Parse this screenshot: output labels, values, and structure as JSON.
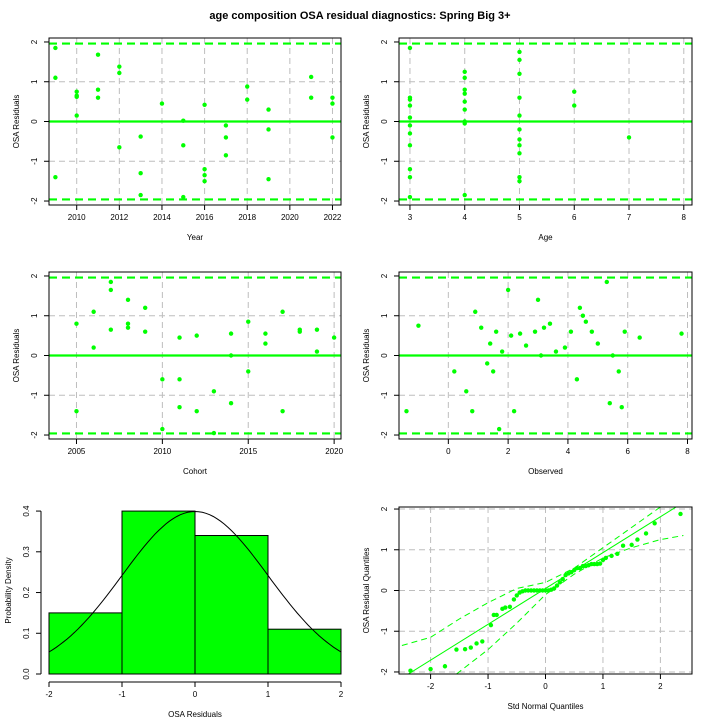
{
  "title": "age composition OSA residual diagnostics: Spring Big 3+",
  "colors": {
    "points": "#00ff00",
    "lines": "#00ff00",
    "grid": "#bebebe",
    "hist_fill": "#00ff00",
    "density": "#000000",
    "frame": "#000000"
  },
  "chart_data": [
    {
      "type": "scatter",
      "xlabel": "Year",
      "ylabel": "OSA Residuals",
      "xlim": [
        2008.7,
        2022.4
      ],
      "ylim": [
        -2.1,
        2.1
      ],
      "xticks": [
        2010,
        2012,
        2014,
        2016,
        2018,
        2020,
        2022
      ],
      "yticks": [
        -2,
        -1,
        0,
        1,
        2
      ],
      "vgrid": [
        2010,
        2012,
        2014,
        2016,
        2018,
        2020,
        2022
      ],
      "hlines": [
        0
      ],
      "hlines_dashed": [
        -1.96,
        1.96
      ],
      "grid": true,
      "x": [
        2009,
        2009,
        2009,
        2010,
        2010,
        2010,
        2010,
        2011,
        2011,
        2011,
        2012,
        2012,
        2012,
        2013,
        2013,
        2013,
        2014,
        2015,
        2015,
        2015,
        2016,
        2016,
        2016,
        2016,
        2017,
        2017,
        2017,
        2018,
        2018,
        2019,
        2019,
        2019,
        2021,
        2021,
        2022,
        2022,
        2022
      ],
      "y": [
        1.85,
        1.1,
        -1.4,
        0.75,
        0.65,
        0.62,
        0.15,
        1.68,
        0.8,
        0.6,
        1.38,
        1.22,
        -0.65,
        -1.3,
        -1.85,
        -0.38,
        0.45,
        0.02,
        -0.6,
        -1.9,
        0.42,
        -1.2,
        -1.35,
        -1.5,
        -0.1,
        -0.4,
        -0.85,
        0.88,
        0.55,
        0.3,
        -0.2,
        -1.45,
        1.12,
        0.6,
        0.6,
        0.45,
        -0.4
      ]
    },
    {
      "type": "scatter",
      "xlabel": "Age",
      "ylabel": "OSA Residuals",
      "xlim": [
        2.8,
        8.15
      ],
      "ylim": [
        -2.1,
        2.1
      ],
      "xticks": [
        3,
        4,
        5,
        6,
        7,
        8
      ],
      "yticks": [
        -2,
        -1,
        0,
        1,
        2
      ],
      "vgrid": [
        3,
        4,
        5,
        6,
        7,
        8
      ],
      "hlines": [
        0
      ],
      "hlines_dashed": [
        -1.96,
        1.96
      ],
      "grid": true,
      "x": [
        3,
        3,
        3,
        3,
        3,
        3,
        3,
        3,
        3,
        3,
        3,
        4,
        4,
        4,
        4,
        4,
        4,
        4,
        4,
        4,
        5,
        5,
        5,
        5,
        5,
        5,
        5,
        5,
        5,
        5,
        5,
        6,
        6,
        7
      ],
      "y": [
        1.85,
        0.6,
        0.55,
        0.4,
        0.1,
        -0.1,
        -0.3,
        -0.6,
        -1.2,
        -1.4,
        -1.9,
        1.25,
        1.1,
        0.8,
        0.7,
        0.5,
        0.3,
        0.0,
        -0.05,
        -1.85,
        1.75,
        1.55,
        1.2,
        0.6,
        0.15,
        -0.2,
        -0.45,
        -0.6,
        -0.8,
        -1.4,
        -1.5,
        0.75,
        0.4,
        -0.4
      ]
    },
    {
      "type": "scatter",
      "xlabel": "Cohort",
      "ylabel": "OSA Residuals",
      "xlim": [
        2003.4,
        2020.4
      ],
      "ylim": [
        -2.1,
        2.1
      ],
      "xticks": [
        2005,
        2010,
        2015,
        2020
      ],
      "yticks": [
        -2,
        -1,
        0,
        1,
        2
      ],
      "vgrid": [
        2005,
        2010,
        2015,
        2020
      ],
      "hlines": [
        0
      ],
      "hlines_dashed": [
        -1.96,
        1.96
      ],
      "grid": true,
      "x": [
        2005,
        2005,
        2006,
        2006,
        2007,
        2007,
        2007,
        2008,
        2008,
        2008,
        2009,
        2009,
        2010,
        2010,
        2011,
        2011,
        2011,
        2012,
        2012,
        2013,
        2013,
        2014,
        2014,
        2014,
        2015,
        2015,
        2016,
        2016,
        2017,
        2017,
        2018,
        2018,
        2019,
        2019,
        2020
      ],
      "y": [
        0.8,
        -1.4,
        1.1,
        0.2,
        1.85,
        1.65,
        0.65,
        1.4,
        0.8,
        0.7,
        1.2,
        0.6,
        -0.6,
        -1.85,
        0.45,
        -0.6,
        -1.3,
        0.5,
        -1.4,
        -0.9,
        -1.95,
        0.55,
        0.0,
        -1.2,
        0.85,
        -0.4,
        0.55,
        0.3,
        1.1,
        -1.4,
        0.6,
        0.65,
        0.65,
        0.1,
        0.45
      ]
    },
    {
      "type": "scatter",
      "xlabel": "Observed",
      "ylabel": "OSA Residuals",
      "xlim": [
        -1.65,
        8.15
      ],
      "ylim": [
        -2.1,
        2.1
      ],
      "xticks": [
        0,
        2,
        4,
        6,
        8
      ],
      "yticks": [
        -2,
        -1,
        0,
        1,
        2
      ],
      "vgrid": [
        0,
        2,
        4,
        6,
        8
      ],
      "hlines": [
        0
      ],
      "hlines_dashed": [
        -1.96,
        1.96
      ],
      "grid": true,
      "x": [
        -1.4,
        -1.0,
        0.2,
        0.6,
        0.8,
        0.9,
        1.1,
        1.3,
        1.4,
        1.5,
        1.6,
        1.7,
        1.8,
        2.0,
        2.1,
        2.2,
        2.4,
        2.6,
        2.9,
        3.0,
        3.1,
        3.2,
        3.4,
        3.6,
        3.9,
        4.1,
        4.3,
        4.4,
        4.5,
        4.6,
        4.8,
        5.0,
        5.3,
        5.4,
        5.5,
        5.7,
        5.8,
        5.9,
        6.4,
        7.8
      ],
      "y": [
        -1.4,
        0.75,
        -0.4,
        -0.9,
        -1.4,
        1.1,
        0.7,
        -0.2,
        0.3,
        -0.4,
        0.6,
        -1.85,
        0.1,
        1.65,
        0.5,
        -1.4,
        0.55,
        0.25,
        0.6,
        1.4,
        0.0,
        0.7,
        0.8,
        0.1,
        0.2,
        0.6,
        -0.6,
        1.2,
        1.0,
        0.85,
        0.6,
        0.3,
        1.85,
        -1.2,
        0.0,
        -0.4,
        -1.3,
        0.6,
        0.45,
        0.55
      ]
    },
    {
      "type": "histogram",
      "xlabel": "OSA Residuals",
      "ylabel": "Probability Density",
      "xlim": [
        -2,
        2
      ],
      "ylim": [
        0,
        0.41
      ],
      "xticks": [
        -2,
        -1,
        0,
        1,
        2
      ],
      "yticks": [
        0.0,
        0.1,
        0.2,
        0.3,
        0.4
      ],
      "grid": false,
      "bins": [
        [
          -2,
          -1
        ],
        [
          -1,
          0
        ],
        [
          0,
          1
        ],
        [
          1,
          2
        ]
      ],
      "values": [
        0.15,
        0.4,
        0.34,
        0.11
      ],
      "density_curve": "standard normal"
    },
    {
      "type": "qq",
      "xlabel": "Std Normal Quantiles",
      "ylabel": "OSA Residual Quantiles",
      "xlim": [
        -2.55,
        2.55
      ],
      "ylim": [
        -2.05,
        2.05
      ],
      "xticks": [
        -2,
        -1,
        0,
        1,
        2
      ],
      "yticks": [
        -2,
        -1,
        0,
        1,
        2
      ],
      "vgrid": [
        -2,
        -1,
        0,
        1,
        2
      ],
      "hgrid": [
        -2,
        -1,
        0,
        1,
        2
      ],
      "grid": true,
      "reference_line": {
        "slope": 0.88,
        "intercept": 0.05
      },
      "band": {
        "upper": [
          [
            -2.5,
            -1.35
          ],
          [
            -2.0,
            -1.15
          ],
          [
            -1.5,
            -0.7
          ],
          [
            -1.0,
            -0.3
          ],
          [
            -0.5,
            0.05
          ],
          [
            0.0,
            0.2
          ],
          [
            0.5,
            0.55
          ],
          [
            1.0,
            1.05
          ],
          [
            1.5,
            1.55
          ],
          [
            2.0,
            2.05
          ]
        ],
        "lower": [
          [
            -1.55,
            -2.05
          ],
          [
            -1.0,
            -1.45
          ],
          [
            -0.5,
            -0.8
          ],
          [
            0.0,
            -0.1
          ],
          [
            0.5,
            0.4
          ],
          [
            1.0,
            0.8
          ],
          [
            1.5,
            1.05
          ],
          [
            2.0,
            1.25
          ],
          [
            2.4,
            1.35
          ]
        ]
      },
      "points": [
        [
          -2.35,
          -1.97
        ],
        [
          -2.0,
          -1.93
        ],
        [
          -1.75,
          -1.86
        ],
        [
          -1.55,
          -1.45
        ],
        [
          -1.4,
          -1.44
        ],
        [
          -1.3,
          -1.4
        ],
        [
          -1.2,
          -1.3
        ],
        [
          -1.1,
          -1.25
        ],
        [
          -0.95,
          -0.85
        ],
        [
          -0.9,
          -0.6
        ],
        [
          -0.85,
          -0.6
        ],
        [
          -0.75,
          -0.45
        ],
        [
          -0.7,
          -0.42
        ],
        [
          -0.62,
          -0.4
        ],
        [
          -0.55,
          -0.22
        ],
        [
          -0.5,
          -0.12
        ],
        [
          -0.45,
          -0.05
        ],
        [
          -0.4,
          -0.02
        ],
        [
          -0.35,
          0.0
        ],
        [
          -0.3,
          0.0
        ],
        [
          -0.25,
          0.0
        ],
        [
          -0.2,
          0.0
        ],
        [
          -0.15,
          0.0
        ],
        [
          -0.1,
          0.0
        ],
        [
          -0.05,
          0.0
        ],
        [
          0.0,
          0.0
        ],
        [
          0.05,
          0.0
        ],
        [
          0.1,
          0.02
        ],
        [
          0.15,
          0.05
        ],
        [
          0.2,
          0.12
        ],
        [
          0.25,
          0.2
        ],
        [
          0.3,
          0.28
        ],
        [
          0.35,
          0.38
        ],
        [
          0.4,
          0.42
        ],
        [
          0.45,
          0.45
        ],
        [
          0.5,
          0.5
        ],
        [
          0.55,
          0.55
        ],
        [
          0.6,
          0.55
        ],
        [
          0.65,
          0.6
        ],
        [
          0.7,
          0.6
        ],
        [
          0.75,
          0.62
        ],
        [
          0.8,
          0.65
        ],
        [
          0.85,
          0.65
        ],
        [
          0.9,
          0.65
        ],
        [
          0.95,
          0.66
        ],
        [
          1.0,
          0.75
        ],
        [
          1.05,
          0.8
        ],
        [
          1.15,
          0.85
        ],
        [
          1.25,
          0.9
        ],
        [
          1.35,
          1.1
        ],
        [
          1.5,
          1.12
        ],
        [
          1.6,
          1.25
        ],
        [
          1.75,
          1.4
        ],
        [
          1.9,
          1.65
        ],
        [
          2.35,
          1.88
        ]
      ]
    }
  ]
}
